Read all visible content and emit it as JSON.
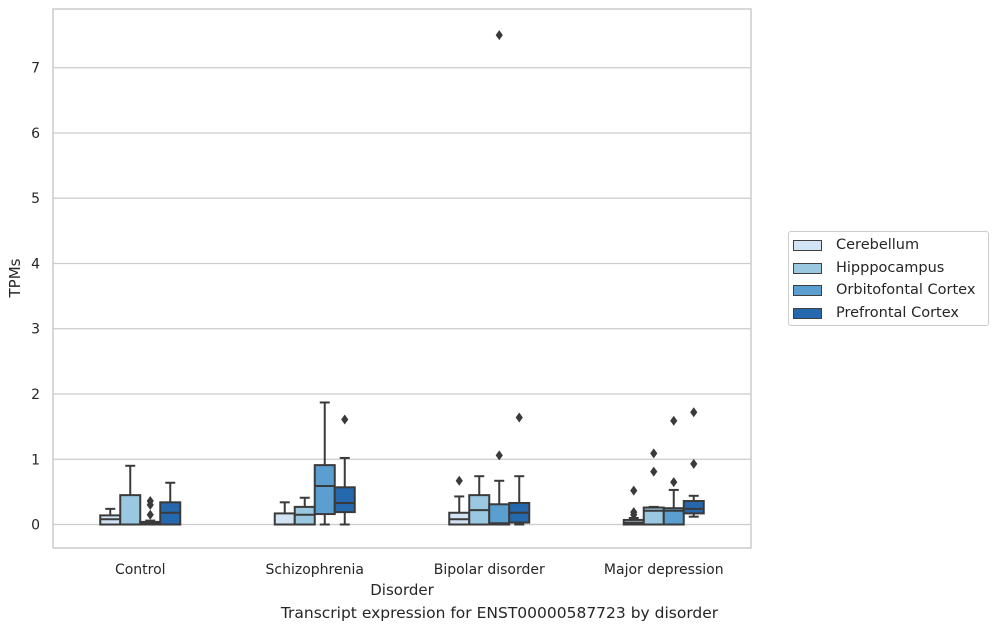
{
  "caption": "Transcript expression for ENST00000587723 by disorder",
  "colors": {
    "Cerebellum": "#d2e3f3",
    "Hipppocampus": "#9ac8e0",
    "Orbitofontal Cortex": "#5a9fcf",
    "Prefrontal Cortex": "#2668ad",
    "line": "#3a3a3a",
    "grid": "#cccccc"
  },
  "chart_data": {
    "type": "box",
    "xlabel": "Disorder",
    "ylabel": "TPMs",
    "ylim": [
      -0.36,
      7.9
    ],
    "yticks": [
      0,
      1,
      2,
      3,
      4,
      5,
      6,
      7
    ],
    "categories": [
      "Control",
      "Schizophrenia",
      "Bipolar disorder",
      "Major depression"
    ],
    "grid": "horizontal",
    "legend_position": "right",
    "series": [
      {
        "name": "Cerebellum",
        "boxes": [
          {
            "whisker_low": 0.0,
            "q1": 0.0,
            "median": 0.08,
            "q3": 0.14,
            "whisker_high": 0.24,
            "outliers": []
          },
          {
            "whisker_low": 0.0,
            "q1": 0.0,
            "median": 0.0,
            "q3": 0.17,
            "whisker_high": 0.34,
            "outliers": []
          },
          {
            "whisker_low": 0.0,
            "q1": 0.0,
            "median": 0.08,
            "q3": 0.18,
            "whisker_high": 0.43,
            "outliers": [
              0.67
            ]
          },
          {
            "whisker_low": 0.0,
            "q1": 0.0,
            "median": 0.03,
            "q3": 0.07,
            "whisker_high": 0.1,
            "outliers": [
              0.15,
              0.19,
              0.52
            ]
          }
        ]
      },
      {
        "name": "Hipppocampus",
        "boxes": [
          {
            "whisker_low": 0.0,
            "q1": 0.0,
            "median": 0.0,
            "q3": 0.45,
            "whisker_high": 0.9,
            "outliers": []
          },
          {
            "whisker_low": 0.0,
            "q1": 0.0,
            "median": 0.15,
            "q3": 0.27,
            "whisker_high": 0.41,
            "outliers": []
          },
          {
            "whisker_low": 0.0,
            "q1": 0.0,
            "median": 0.22,
            "q3": 0.45,
            "whisker_high": 0.74,
            "outliers": []
          },
          {
            "whisker_low": 0.0,
            "q1": 0.0,
            "median": 0.21,
            "q3": 0.26,
            "whisker_high": 0.27,
            "outliers": [
              0.81,
              1.09
            ]
          }
        ]
      },
      {
        "name": "Orbitofontal Cortex",
        "boxes": [
          {
            "whisker_low": 0.0,
            "q1": 0.0,
            "median": 0.02,
            "q3": 0.04,
            "whisker_high": 0.06,
            "outliers": [
              0.15,
              0.3,
              0.36
            ]
          },
          {
            "whisker_low": 0.0,
            "q1": 0.16,
            "median": 0.59,
            "q3": 0.91,
            "whisker_high": 1.87,
            "outliers": []
          },
          {
            "whisker_low": 0.0,
            "q1": 0.0,
            "median": 0.02,
            "q3": 0.31,
            "whisker_high": 0.67,
            "outliers": [
              1.06,
              7.5
            ]
          },
          {
            "whisker_low": 0.0,
            "q1": 0.0,
            "median": 0.21,
            "q3": 0.25,
            "whisker_high": 0.53,
            "outliers": [
              0.65,
              1.59
            ]
          }
        ]
      },
      {
        "name": "Prefrontal Cortex",
        "boxes": [
          {
            "whisker_low": 0.0,
            "q1": 0.0,
            "median": 0.18,
            "q3": 0.34,
            "whisker_high": 0.64,
            "outliers": []
          },
          {
            "whisker_low": 0.0,
            "q1": 0.19,
            "median": 0.33,
            "q3": 0.57,
            "whisker_high": 1.02,
            "outliers": [
              1.61
            ]
          },
          {
            "whisker_low": 0.0,
            "q1": 0.03,
            "median": 0.18,
            "q3": 0.33,
            "whisker_high": 0.74,
            "outliers": [
              1.64
            ]
          },
          {
            "whisker_low": 0.12,
            "q1": 0.17,
            "median": 0.24,
            "q3": 0.36,
            "whisker_high": 0.44,
            "outliers": [
              0.93,
              1.72
            ]
          }
        ]
      }
    ]
  }
}
